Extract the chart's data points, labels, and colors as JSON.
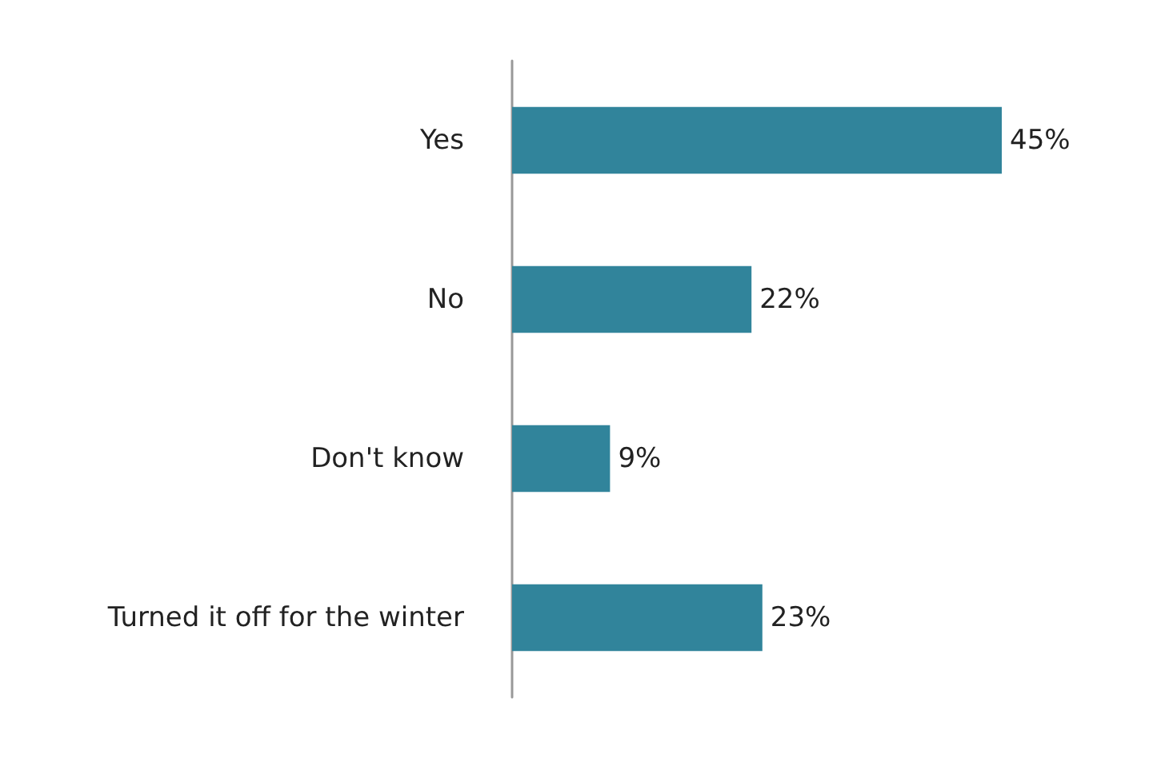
{
  "chart_data": {
    "type": "bar",
    "orientation": "horizontal",
    "categories": [
      "Yes",
      "No",
      "Don't know",
      "Turned it off for the winter"
    ],
    "values": [
      45,
      22,
      9,
      23
    ],
    "value_labels": [
      "45%",
      "22%",
      "9%",
      "23%"
    ],
    "color": "#31849b",
    "grid": false
  }
}
